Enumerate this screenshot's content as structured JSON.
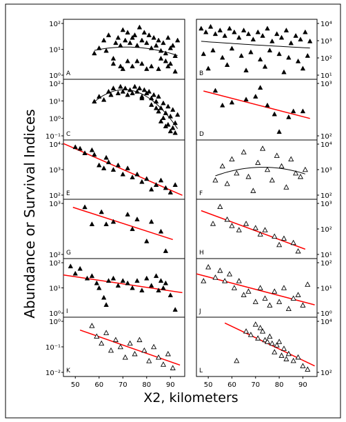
{
  "figure": {
    "y_label": "Abundance or Survival Indices",
    "x_label": "X2, kilometers",
    "line_color": "#ff0000",
    "marker_color": "#000000",
    "x_ticks": [
      "50",
      "60",
      "70",
      "80",
      "90"
    ]
  },
  "chart_data": [
    {
      "type": "scatter",
      "panel": "A",
      "marker": "filled-triangle",
      "y_ticks": [
        "10²",
        "10¹",
        "10⁰"
      ],
      "fit": "curve",
      "fit_color": "black",
      "x": [
        58,
        60,
        62,
        63,
        64,
        66,
        67,
        68,
        69,
        70,
        71,
        72,
        72,
        73,
        74,
        75,
        76,
        77,
        78,
        79,
        80,
        81,
        82,
        83,
        84,
        85,
        86,
        87,
        88,
        89,
        90,
        91,
        92,
        93,
        70,
        74,
        78,
        82,
        85,
        88,
        90,
        92,
        66,
        69,
        76,
        80,
        86,
        89
      ],
      "y": [
        0.9,
        1.1,
        1.4,
        1.0,
        1.6,
        0.7,
        1.3,
        1.5,
        1.2,
        1.8,
        1.4,
        0.6,
        1.7,
        1.3,
        1.5,
        1.6,
        1.2,
        1.9,
        1.4,
        1.7,
        1.3,
        1.6,
        1.1,
        1.5,
        1.2,
        1.4,
        1.0,
        1.3,
        0.9,
        1.5,
        1.1,
        1.2,
        0.8,
        1.4,
        0.3,
        0.4,
        0.5,
        0.4,
        0.3,
        0.6,
        0.5,
        0.2,
        0.5,
        0.4,
        0.6,
        0.3,
        0.7,
        0.4
      ]
    },
    {
      "type": "scatter",
      "panel": "B",
      "marker": "filled-triangle",
      "y_ticks": [
        "10⁴",
        "10³",
        "10²",
        "10¹"
      ],
      "fit": "curve",
      "fit_color": "black",
      "x": [
        47,
        49,
        51,
        53,
        55,
        57,
        59,
        61,
        63,
        65,
        67,
        69,
        71,
        73,
        75,
        77,
        79,
        81,
        83,
        85,
        87,
        89,
        91,
        93,
        48,
        52,
        56,
        60,
        64,
        68,
        72,
        76,
        80,
        84,
        88,
        92,
        50,
        58,
        66,
        74,
        82,
        90
      ],
      "y": [
        3.8,
        3.6,
        3.9,
        3.5,
        3.7,
        3.4,
        3.8,
        3.6,
        3.3,
        3.7,
        3.5,
        3.2,
        3.6,
        3.4,
        3.8,
        3.1,
        3.5,
        3.3,
        3.7,
        3.0,
        3.4,
        3.2,
        3.6,
        3.1,
        2.4,
        2.6,
        2.2,
        2.7,
        2.3,
        2.5,
        2.1,
        2.6,
        2.4,
        2.2,
        2.0,
        2.3,
        1.6,
        1.8,
        1.5,
        1.7,
        1.4,
        1.6
      ]
    },
    {
      "type": "scatter",
      "panel": "C",
      "marker": "filled-triangle",
      "y_ticks": [
        "10²",
        "10¹",
        "10⁰",
        "10⁻¹"
      ],
      "fit": "curve",
      "fit_color": "black",
      "x": [
        58,
        60,
        62,
        64,
        65,
        66,
        68,
        69,
        70,
        71,
        72,
        73,
        74,
        75,
        76,
        77,
        78,
        79,
        80,
        81,
        82,
        83,
        84,
        85,
        86,
        87,
        88,
        89,
        90,
        91,
        92,
        93,
        78,
        82,
        85,
        87,
        89,
        91,
        84,
        86,
        88,
        90,
        92
      ],
      "y": [
        1.0,
        1.3,
        1.1,
        1.6,
        1.4,
        1.8,
        1.5,
        1.9,
        1.6,
        1.8,
        1.4,
        1.7,
        1.5,
        1.9,
        1.6,
        1.8,
        1.3,
        1.7,
        1.5,
        1.6,
        1.2,
        1.4,
        1.0,
        1.3,
        0.6,
        0.9,
        0.3,
        0.7,
        0.1,
        0.5,
        -0.3,
        0.2,
        1.2,
        0.8,
        0.4,
        0.0,
        -0.4,
        -0.6,
        0.6,
        -0.2,
        -0.5,
        -0.8,
        -0.9
      ]
    },
    {
      "type": "scatter",
      "panel": "D",
      "marker": "filled-triangle",
      "y_ticks": [
        "10³",
        "10²"
      ],
      "fit": "line",
      "fit_color": "red",
      "x": [
        53,
        56,
        60,
        66,
        70,
        72,
        75,
        78,
        80,
        84,
        86,
        90
      ],
      "y": [
        3.1,
        2.6,
        2.7,
        2.8,
        2.9,
        3.2,
        2.6,
        2.3,
        1.7,
        2.2,
        2.4,
        2.4
      ]
    },
    {
      "type": "scatter",
      "panel": "E",
      "marker": "filled-triangle",
      "y_ticks": [
        "10⁴",
        "10³",
        "10²"
      ],
      "fit": "line",
      "fit_color": "red",
      "x": [
        50,
        52,
        54,
        57,
        58,
        60,
        62,
        63,
        64,
        66,
        68,
        70,
        72,
        74,
        76,
        78,
        80,
        82,
        84,
        86,
        88,
        90,
        92
      ],
      "y": [
        4.8,
        4.7,
        4.4,
        4.6,
        4.3,
        3.6,
        3.4,
        4.1,
        3.8,
        3.3,
        3.6,
        3.0,
        3.4,
        2.8,
        3.0,
        2.5,
        2.7,
        2.0,
        2.3,
        2.6,
        2.1,
        1.8,
        2.3
      ]
    },
    {
      "type": "scatter",
      "panel": "F",
      "marker": "open-triangle",
      "y_ticks": [
        "10⁴",
        "10³",
        "10²"
      ],
      "fit": "curve",
      "fit_color": "black",
      "x": [
        53,
        56,
        58,
        60,
        62,
        65,
        67,
        69,
        71,
        73,
        75,
        77,
        79,
        81,
        83,
        85,
        87,
        89,
        91
      ],
      "y": [
        3.0,
        3.4,
        2.9,
        3.6,
        3.2,
        3.8,
        3.1,
        2.7,
        3.5,
        3.9,
        3.3,
        3.0,
        3.7,
        3.4,
        2.8,
        3.6,
        3.2,
        3.1,
        3.3
      ]
    },
    {
      "type": "scatter",
      "panel": "G",
      "marker": "filled-triangle",
      "y_ticks": [
        "10³",
        "10²"
      ],
      "fit": "line",
      "fit_color": "red",
      "x": [
        54,
        57,
        61,
        63,
        66,
        72,
        74,
        76,
        80,
        82,
        86,
        88
      ],
      "y": [
        3.1,
        2.4,
        2.9,
        2.4,
        2.5,
        2.8,
        2.2,
        2.6,
        1.7,
        2.5,
        2.1,
        1.3
      ]
    },
    {
      "type": "scatter",
      "panel": "H",
      "marker": "open-triangle",
      "y_ticks": [
        "10³",
        "10²",
        "10¹"
      ],
      "fit": "line",
      "fit_color": "red",
      "x": [
        52,
        55,
        58,
        60,
        63,
        66,
        70,
        72,
        74,
        78,
        80,
        82,
        86,
        88
      ],
      "y": [
        3.6,
        4.4,
        3.8,
        3.5,
        3.3,
        3.6,
        3.4,
        3.1,
        3.3,
        3.0,
        2.6,
        2.9,
        2.7,
        2.3
      ]
    },
    {
      "type": "scatter",
      "panel": "I",
      "marker": "filled-triangle",
      "y_ticks": [
        "10²",
        "10¹",
        "10⁰"
      ],
      "fit": "line",
      "fit_color": "red",
      "x": [
        48,
        50,
        52,
        55,
        57,
        59,
        60,
        62,
        63,
        64,
        66,
        68,
        70,
        72,
        74,
        76,
        78,
        80,
        82,
        84,
        85,
        86,
        87,
        88,
        90,
        92
      ],
      "y": [
        2.0,
        1.7,
        1.9,
        1.5,
        1.6,
        1.3,
        1.1,
        0.7,
        0.4,
        1.4,
        1.5,
        1.2,
        1.4,
        1.3,
        1.1,
        1.4,
        1.0,
        1.5,
        1.2,
        1.6,
        1.0,
        1.4,
        1.1,
        1.3,
        0.8,
        0.2
      ]
    },
    {
      "type": "scatter",
      "panel": "J",
      "marker": "open-triangle",
      "y_ticks": [
        "10²",
        "10¹",
        "10⁰"
      ],
      "fit": "line",
      "fit_color": "red",
      "x": [
        48,
        50,
        53,
        55,
        57,
        59,
        61,
        63,
        65,
        67,
        70,
        72,
        74,
        76,
        78,
        80,
        82,
        84,
        86,
        88,
        90,
        92
      ],
      "y": [
        1.5,
        1.9,
        1.6,
        1.8,
        1.5,
        1.7,
        1.3,
        1.5,
        1.1,
        1.2,
        0.9,
        1.3,
        1.0,
        0.8,
        1.2,
        0.9,
        1.3,
        0.7,
        1.0,
        1.1,
        0.8,
        1.4
      ]
    },
    {
      "type": "scatter",
      "panel": "K",
      "marker": "open-triangle",
      "y_ticks": [
        "10⁰",
        "10⁻¹",
        "10⁻²"
      ],
      "fit": "line",
      "fit_color": "red",
      "x": [
        57,
        59,
        61,
        63,
        65,
        67,
        69,
        71,
        73,
        75,
        77,
        79,
        81,
        83,
        85,
        87,
        89,
        91
      ],
      "y": [
        -0.4,
        -0.7,
        -0.9,
        -0.6,
        -1.1,
        -0.8,
        -1.0,
        -1.3,
        -0.9,
        -1.2,
        -0.8,
        -1.1,
        -1.4,
        -1.0,
        -1.3,
        -1.5,
        -1.2,
        -1.6
      ]
    },
    {
      "type": "scatter",
      "panel": "L",
      "marker": "open-triangle",
      "y_ticks": [
        "10⁴",
        "10²"
      ],
      "fit": "line",
      "fit_color": "red",
      "x": [
        62,
        66,
        68,
        70,
        71,
        72,
        73,
        74,
        75,
        76,
        77,
        78,
        79,
        80,
        81,
        82,
        83,
        84,
        86,
        88,
        90,
        92
      ],
      "y": [
        1.9,
        3.6,
        3.4,
        4.0,
        3.2,
        3.8,
        3.6,
        3.1,
        3.0,
        3.3,
        2.9,
        2.4,
        2.8,
        3.0,
        2.2,
        2.6,
        2.0,
        2.3,
        1.9,
        2.1,
        1.6,
        1.4
      ]
    }
  ]
}
